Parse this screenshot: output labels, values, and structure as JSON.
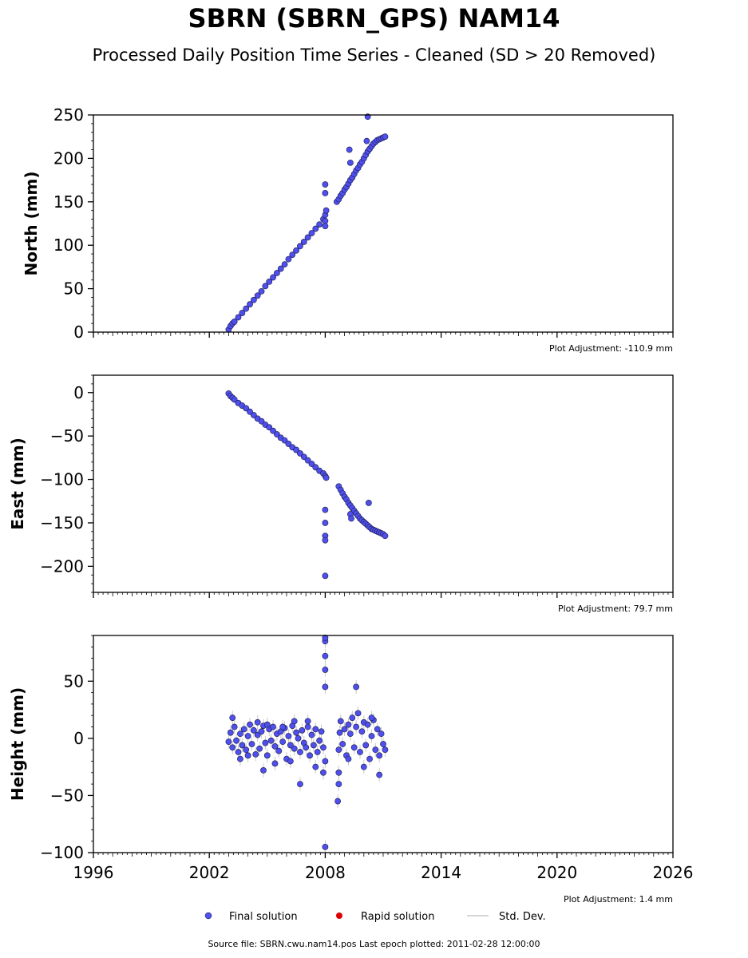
{
  "header": {
    "title": "SBRN (SBRN_GPS) NAM14",
    "subtitle": "Processed Daily Position Time Series - Cleaned (SD > 20 Removed)"
  },
  "colors": {
    "final_fill": "#4f4fef",
    "final_edge": "#1a1a40",
    "rapid_fill": "#dd0000",
    "stddev_line": "#c8c8c8",
    "axis": "#000000"
  },
  "legend": {
    "items": [
      {
        "label": "Final solution",
        "marker": "circle",
        "color": "#4f4fef"
      },
      {
        "label": "Rapid solution",
        "marker": "circle",
        "color": "#dd0000"
      },
      {
        "label": "Std. Dev.",
        "marker": "line",
        "color": "#c8c8c8"
      }
    ]
  },
  "footer": {
    "source": "Source file: SBRN.cwu.nam14.pos  Last epoch plotted: 2011-02-28 12:00:00"
  },
  "chart_data": [
    {
      "type": "scatter",
      "ylabel": "North (mm)",
      "xlim": [
        1996,
        2026
      ],
      "ylim": [
        0,
        250
      ],
      "yticks": [
        0,
        50,
        100,
        150,
        200,
        250
      ],
      "xticks": [
        1996,
        2002,
        2008,
        2014,
        2020,
        2026
      ],
      "show_xtick_labels": false,
      "adjustment": "Plot Adjustment: -110.9 mm",
      "series": [
        {
          "x": [
            2003.0,
            2003.1,
            2003.2,
            2003.3,
            2003.5,
            2003.7,
            2003.9,
            2004.1,
            2004.3,
            2004.5,
            2004.7,
            2004.9,
            2005.1,
            2005.3,
            2005.5,
            2005.7,
            2005.9,
            2006.1,
            2006.3,
            2006.5,
            2006.7,
            2006.9,
            2007.1,
            2007.3,
            2007.5,
            2007.7,
            2007.9,
            2008.0,
            2008.0,
            2008.0,
            2008.0,
            2008.0,
            2008.05,
            2008.6,
            2008.7,
            2008.8,
            2008.9,
            2009.0,
            2009.1,
            2009.2,
            2009.3,
            2009.4,
            2009.5,
            2009.6,
            2009.7,
            2009.8,
            2009.9,
            2010.0,
            2010.1,
            2010.2,
            2010.3,
            2010.4,
            2010.5,
            2010.6,
            2010.7,
            2010.8,
            2010.9,
            2011.0,
            2011.1,
            2010.2,
            2010.15,
            2009.25,
            2009.3
          ],
          "y": [
            3,
            7,
            10,
            12,
            17,
            22,
            27,
            32,
            37,
            42,
            47,
            53,
            58,
            63,
            68,
            73,
            78,
            84,
            89,
            94,
            99,
            104,
            109,
            114,
            119,
            124,
            130,
            135,
            160,
            170,
            128,
            122,
            140,
            150,
            153,
            157,
            160,
            164,
            167,
            171,
            175,
            178,
            182,
            186,
            189,
            193,
            196,
            200,
            204,
            208,
            211,
            214,
            217,
            219,
            221,
            222,
            223,
            224,
            225,
            248,
            220,
            210,
            195
          ],
          "stddev": [
            3,
            3,
            3,
            3,
            3,
            3,
            3,
            3,
            3,
            3,
            3,
            3,
            3,
            3,
            3,
            3,
            3,
            3,
            3,
            3,
            3,
            3,
            3,
            3,
            3,
            3,
            3,
            3,
            3,
            3,
            3,
            3,
            3,
            3,
            3,
            3,
            3,
            3,
            3,
            3,
            3,
            3,
            3,
            3,
            3,
            3,
            3,
            3,
            3,
            3,
            3,
            3,
            3,
            3,
            3,
            3,
            3,
            3,
            3,
            3,
            3,
            3,
            3
          ]
        }
      ]
    },
    {
      "type": "scatter",
      "ylabel": "East (mm)",
      "xlim": [
        1996,
        2026
      ],
      "ylim": [
        -230,
        20
      ],
      "yticks": [
        0,
        -50,
        -100,
        -150,
        -200
      ],
      "xticks": [
        1996,
        2002,
        2008,
        2014,
        2020,
        2026
      ],
      "show_xtick_labels": false,
      "adjustment": "Plot Adjustment: 79.7 mm",
      "series": [
        {
          "x": [
            2003.0,
            2003.1,
            2003.2,
            2003.3,
            2003.5,
            2003.7,
            2003.9,
            2004.1,
            2004.3,
            2004.5,
            2004.7,
            2004.9,
            2005.1,
            2005.3,
            2005.5,
            2005.7,
            2005.9,
            2006.1,
            2006.3,
            2006.5,
            2006.7,
            2006.9,
            2007.1,
            2007.3,
            2007.5,
            2007.7,
            2007.9,
            2008.0,
            2008.0,
            2008.0,
            2008.0,
            2008.0,
            2008.0,
            2008.05,
            2008.7,
            2008.8,
            2008.9,
            2009.0,
            2009.1,
            2009.2,
            2009.3,
            2009.4,
            2009.5,
            2009.6,
            2009.7,
            2009.8,
            2009.9,
            2010.0,
            2010.1,
            2010.2,
            2010.3,
            2010.4,
            2010.5,
            2010.6,
            2010.7,
            2010.8,
            2010.9,
            2011.0,
            2011.1,
            2009.3,
            2009.35,
            2010.25
          ],
          "y": [
            -1,
            -4,
            -6,
            -8,
            -12,
            -15,
            -18,
            -22,
            -26,
            -30,
            -33,
            -37,
            -40,
            -44,
            -48,
            -52,
            -55,
            -59,
            -63,
            -66,
            -70,
            -74,
            -78,
            -82,
            -86,
            -90,
            -93,
            -96,
            -135,
            -150,
            -165,
            -170,
            -211,
            -98,
            -108,
            -112,
            -116,
            -120,
            -123,
            -127,
            -130,
            -133,
            -136,
            -139,
            -142,
            -145,
            -147,
            -149,
            -151,
            -153,
            -155,
            -157,
            -158,
            -159,
            -160,
            -161,
            -162,
            -163,
            -165,
            -140,
            -145,
            -127
          ],
          "stddev": [
            3,
            3,
            3,
            3,
            3,
            3,
            3,
            3,
            3,
            3,
            3,
            3,
            3,
            3,
            3,
            3,
            3,
            3,
            3,
            3,
            3,
            3,
            3,
            3,
            3,
            3,
            3,
            3,
            3,
            3,
            3,
            3,
            3,
            3,
            3,
            3,
            3,
            3,
            3,
            3,
            3,
            3,
            3,
            3,
            3,
            3,
            3,
            3,
            3,
            3,
            3,
            3,
            3,
            3,
            3,
            3,
            3,
            3,
            3,
            3,
            3,
            3
          ]
        }
      ]
    },
    {
      "type": "scatter",
      "ylabel": "Height (mm)",
      "xlim": [
        1996,
        2026
      ],
      "ylim": [
        -100,
        90
      ],
      "yticks": [
        50,
        0,
        -50,
        -100
      ],
      "xticks": [
        1996,
        2002,
        2008,
        2014,
        2020,
        2026
      ],
      "show_xtick_labels": true,
      "adjustment": "Plot Adjustment: 1.4 mm",
      "series": [
        {
          "x": [
            2003.0,
            2003.1,
            2003.2,
            2003.3,
            2003.4,
            2003.5,
            2003.6,
            2003.7,
            2003.8,
            2003.9,
            2004.0,
            2004.1,
            2004.2,
            2004.3,
            2004.4,
            2004.5,
            2004.6,
            2004.7,
            2004.8,
            2004.9,
            2005.0,
            2005.1,
            2005.2,
            2005.3,
            2005.4,
            2005.5,
            2005.6,
            2005.7,
            2005.8,
            2005.9,
            2006.0,
            2006.1,
            2006.2,
            2006.3,
            2006.4,
            2006.5,
            2006.6,
            2006.7,
            2006.8,
            2006.9,
            2007.0,
            2007.1,
            2007.2,
            2007.3,
            2007.4,
            2007.5,
            2007.6,
            2007.7,
            2007.8,
            2007.9,
            2008.0,
            2008.0,
            2008.0,
            2008.0,
            2008.0,
            2008.0,
            2008.0,
            2008.65,
            2008.7,
            2008.7,
            2008.7,
            2008.75,
            2008.8,
            2008.9,
            2009.0,
            2009.1,
            2009.2,
            2009.3,
            2009.4,
            2009.5,
            2009.6,
            2009.7,
            2009.8,
            2009.9,
            2010.0,
            2010.1,
            2010.2,
            2010.3,
            2010.4,
            2010.5,
            2010.6,
            2010.7,
            2010.8,
            2010.9,
            2011.0,
            2011.1,
            2003.2,
            2003.6,
            2004.0,
            2004.5,
            2005.0,
            2005.4,
            2005.8,
            2006.2,
            2006.7,
            2007.1,
            2007.5,
            2007.9,
            2009.2,
            2009.6,
            2010.0,
            2010.4,
            2010.8,
            2006.4,
            2004.8
          ],
          "y": [
            -3,
            5,
            -8,
            10,
            -2,
            -12,
            4,
            -6,
            8,
            -10,
            2,
            12,
            -5,
            7,
            -14,
            3,
            -9,
            6,
            11,
            -4,
            -15,
            8,
            -2,
            10,
            -7,
            4,
            -11,
            6,
            -3,
            9,
            -18,
            2,
            -6,
            11,
            -9,
            5,
            0,
            -12,
            7,
            -4,
            -8,
            10,
            -15,
            3,
            -6,
            8,
            -12,
            -2,
            6,
            -8,
            45,
            60,
            72,
            85,
            88,
            -95,
            -20,
            -55,
            -40,
            -30,
            -10,
            5,
            15,
            -5,
            8,
            -15,
            12,
            4,
            18,
            -8,
            10,
            22,
            -12,
            6,
            14,
            -6,
            12,
            -18,
            2,
            16,
            -10,
            8,
            -32,
            4,
            -5,
            -10,
            18,
            -18,
            -15,
            14,
            12,
            -22,
            10,
            -20,
            -40,
            15,
            -25,
            -30,
            -18,
            45,
            -25,
            18,
            -15,
            15,
            -28
          ],
          "stddev": [
            6,
            6,
            6,
            6,
            6,
            6,
            6,
            6,
            6,
            6,
            6,
            6,
            6,
            6,
            6,
            6,
            6,
            6,
            6,
            6,
            6,
            6,
            6,
            6,
            6,
            6,
            6,
            6,
            6,
            6,
            6,
            6,
            6,
            6,
            6,
            6,
            6,
            6,
            6,
            6,
            6,
            6,
            6,
            6,
            6,
            6,
            6,
            6,
            6,
            6,
            6,
            6,
            6,
            6,
            6,
            6,
            6,
            6,
            6,
            6,
            6,
            6,
            6,
            6,
            6,
            6,
            6,
            6,
            6,
            6,
            6,
            6,
            6,
            6,
            6,
            6,
            6,
            6,
            6,
            6,
            6,
            6,
            6,
            6,
            6,
            6,
            6,
            6,
            6,
            6,
            6,
            6,
            6,
            6,
            6,
            6,
            6,
            6,
            6,
            6,
            6,
            6,
            6,
            6,
            6
          ]
        }
      ]
    }
  ]
}
